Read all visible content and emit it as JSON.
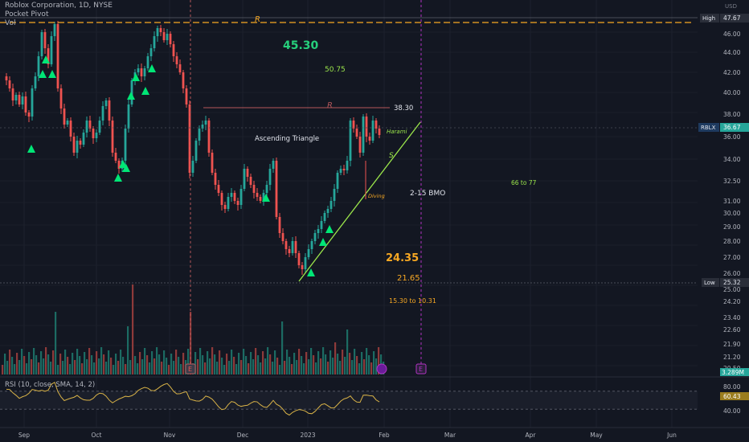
{
  "header": {
    "symbol_line": "Roblox Corporation, 1D, NYSE",
    "indicator_1": "Pocket Pivot",
    "indicator_2": "Vol"
  },
  "price_axis": {
    "unit": "USD",
    "ticks": [
      "46.00",
      "44.00",
      "42.00",
      "40.00",
      "38.00",
      "36.00",
      "34.00",
      "32.50",
      "31.00",
      "30.00",
      "29.00",
      "28.00",
      "27.00",
      "26.00",
      "25.00",
      "24.20",
      "23.40",
      "22.60",
      "21.90",
      "21.20",
      "20.50"
    ],
    "high_label": "High",
    "high_value": "47.67",
    "symbol_tag": "RBLX",
    "last_value": "36.67",
    "low_label": "Low",
    "low_value": "25.32",
    "vol_value": "3.289M"
  },
  "rsi": {
    "label": "RSI (10, close, SMA, 14, 2)",
    "value": "60.43",
    "ticks": [
      "80.00",
      "40.00"
    ],
    "upper": 70,
    "lower": 30
  },
  "time_axis": [
    "Sep",
    "Oct",
    "Nov",
    "Dec",
    "2023",
    "Feb",
    "Mar",
    "Apr",
    "May",
    "Jun"
  ],
  "annotations": {
    "resistance_top": "R",
    "resistance_mid": "R",
    "resistance_mid_price": "38.30",
    "support": "S",
    "ascending_triangle": "Ascending Triangle",
    "target_1": "45.30",
    "target_2": "50.75",
    "earnings_note": "2-15 BMO",
    "range_note": "66 to 77",
    "level_a": "24.35",
    "level_b": "21.65",
    "level_c": "15.30 to 10.31",
    "pattern_1": "Harami",
    "pattern_2": "Diving",
    "earnings_marker": "E"
  },
  "colors": {
    "background": "#131722",
    "bull": "#26a69a",
    "bear": "#ef5350",
    "pivot": "#00e676",
    "trendline": "#9be64b",
    "resistance": "#b5575a",
    "dashed_level": "#f7a823",
    "event_line": "#b233c2",
    "rsi_line": "#d8b247",
    "text_orange": "#f7a823",
    "text_green": "#9be64b"
  },
  "chart_data": {
    "type": "candlestick",
    "title": "Roblox Corporation, 1D, NYSE",
    "price_range": [
      20.2,
      48.5
    ],
    "high": 47.67,
    "low": 25.32,
    "last": 36.67,
    "resistance_levels": [
      47.67,
      38.3
    ],
    "vertical_events": [
      "Nov",
      "Feb"
    ],
    "series": [
      {
        "name": "Vol"
      },
      {
        "name": "RSI (10, close, SMA, 14, 2)",
        "last": 60.43
      }
    ]
  }
}
